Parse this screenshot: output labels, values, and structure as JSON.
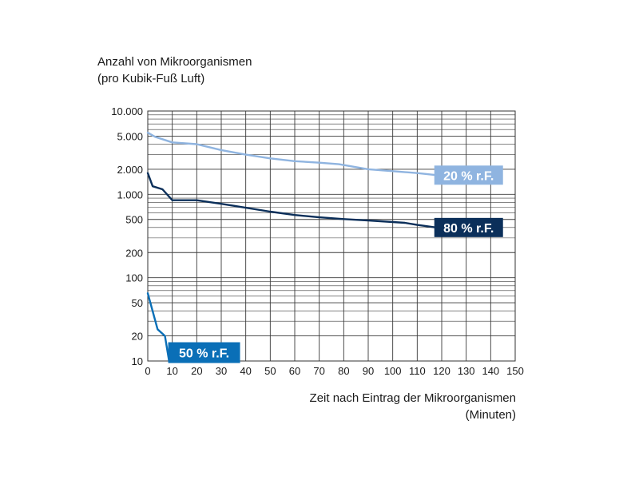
{
  "chart_data": {
    "type": "line",
    "ylabel_lines": [
      "Anzahl von Mikroorganismen",
      "(pro Kubik-Fuß Luft)"
    ],
    "xlabel_lines": [
      "Zeit nach Eintrag der Mikroorganismen",
      "(Minuten)"
    ],
    "xlim": [
      0,
      150
    ],
    "ylim": [
      10,
      10000
    ],
    "yscale": "log",
    "grid": true,
    "x_ticks": [
      0,
      10,
      20,
      30,
      40,
      50,
      60,
      70,
      80,
      90,
      100,
      110,
      120,
      130,
      140,
      150
    ],
    "x_tick_labels": [
      "0",
      "10",
      "20",
      "30",
      "40",
      "50",
      "60",
      "70",
      "80",
      "90",
      "100",
      "110",
      "120",
      "130",
      "140",
      "150"
    ],
    "y_ticks": [
      10,
      20,
      50,
      100,
      200,
      500,
      1000,
      2000,
      5000,
      10000
    ],
    "y_tick_labels": [
      "10",
      "20",
      "50",
      "100",
      "200",
      "500",
      "1.000",
      "2.000",
      "5.000",
      "10.000"
    ],
    "series": [
      {
        "name": "20 % r.F.",
        "color": "#8fb4e0",
        "x": [
          0,
          3,
          10,
          20,
          30,
          40,
          50,
          60,
          70,
          78,
          90,
          100,
          110,
          118
        ],
        "y": [
          5500,
          4900,
          4200,
          4000,
          3400,
          3000,
          2700,
          2500,
          2400,
          2300,
          2000,
          1900,
          1800,
          1700
        ]
      },
      {
        "name": "80 % r.F.",
        "color": "#0b2f5a",
        "x": [
          0,
          2,
          6,
          10,
          20,
          30,
          40,
          50,
          60,
          70,
          80,
          90,
          100,
          105,
          110,
          118
        ],
        "y": [
          1800,
          1250,
          1150,
          850,
          850,
          770,
          690,
          620,
          565,
          530,
          505,
          485,
          465,
          455,
          430,
          400
        ]
      },
      {
        "name": "50 % r.F.",
        "color": "#0a6fb7",
        "x": [
          0,
          4,
          7,
          8.7
        ],
        "y": [
          65,
          24,
          20,
          10
        ]
      }
    ]
  }
}
